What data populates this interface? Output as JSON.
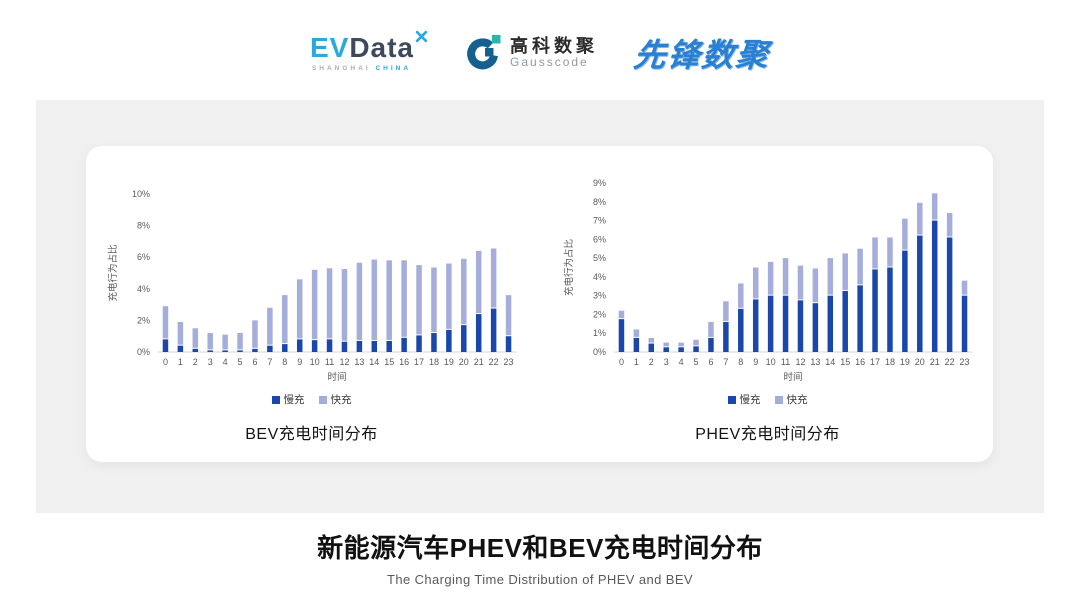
{
  "logos": {
    "evdata": {
      "ev": "EV",
      "data": "Data",
      "sub1": "SHANGHAI",
      "sub2": "CHINA"
    },
    "gausscode": {
      "cn": "高科数聚",
      "en": "Gausscode"
    },
    "xianfeng": {
      "text": "先锋数聚"
    }
  },
  "chart_data": [
    {
      "type": "bar",
      "stacked": true,
      "title": "BEV充电时间分布",
      "xlabel": "时间",
      "ylabel": "充电行为占比",
      "ylim": [
        0,
        10
      ],
      "ytick_step": 2,
      "grid": false,
      "legend_position": "bottom",
      "categories": [
        "0",
        "1",
        "2",
        "3",
        "4",
        "5",
        "6",
        "7",
        "8",
        "9",
        "10",
        "11",
        "12",
        "13",
        "14",
        "15",
        "16",
        "17",
        "18",
        "19",
        "20",
        "21",
        "22",
        "23"
      ],
      "series": [
        {
          "name": "慢充",
          "color": "#1b47ab",
          "values": [
            0.8,
            0.4,
            0.2,
            0.1,
            0.1,
            0.1,
            0.2,
            0.4,
            0.5,
            0.8,
            0.75,
            0.8,
            0.65,
            0.7,
            0.7,
            0.7,
            0.9,
            1.05,
            1.2,
            1.4,
            1.7,
            2.4,
            2.75,
            1.0
          ]
        },
        {
          "name": "快充",
          "color": "#a5addb",
          "values": [
            2.1,
            1.5,
            1.3,
            1.1,
            1.0,
            1.1,
            1.8,
            2.4,
            3.1,
            3.8,
            4.45,
            4.5,
            4.6,
            4.95,
            5.15,
            5.1,
            4.9,
            4.45,
            4.15,
            4.2,
            4.2,
            4.0,
            3.8,
            2.6
          ]
        }
      ]
    },
    {
      "type": "bar",
      "stacked": true,
      "title": "PHEV充电时间分布",
      "xlabel": "时间",
      "ylabel": "充电行为占比",
      "ylim": [
        0,
        9
      ],
      "ytick_step": 1,
      "grid": false,
      "legend_position": "bottom",
      "categories": [
        "0",
        "1",
        "2",
        "3",
        "4",
        "5",
        "6",
        "7",
        "8",
        "9",
        "10",
        "11",
        "12",
        "13",
        "14",
        "15",
        "16",
        "17",
        "18",
        "19",
        "20",
        "21",
        "22",
        "23"
      ],
      "series": [
        {
          "name": "慢充",
          "color": "#1b47ab",
          "values": [
            1.75,
            0.75,
            0.45,
            0.25,
            0.25,
            0.3,
            0.75,
            1.6,
            2.3,
            2.8,
            3.0,
            3.0,
            2.75,
            2.6,
            3.0,
            3.25,
            3.55,
            4.4,
            4.5,
            5.4,
            6.2,
            7.0,
            6.1,
            3.0
          ]
        },
        {
          "name": "快充",
          "color": "#a5addb",
          "values": [
            0.45,
            0.45,
            0.3,
            0.25,
            0.25,
            0.35,
            0.85,
            1.1,
            1.35,
            1.7,
            1.8,
            2.0,
            1.85,
            1.85,
            2.0,
            2.0,
            1.95,
            1.7,
            1.6,
            1.7,
            1.75,
            1.45,
            1.3,
            0.8
          ]
        }
      ]
    }
  ],
  "footer": {
    "title": "新能源汽车PHEV和BEV充电时间分布",
    "subtitle": "The Charging Time Distribution of PHEV and BEV"
  },
  "colors": {
    "slow_charge": "#1b47ab",
    "fast_charge": "#a5addb",
    "band_background": "#f0f0f1",
    "evdata_blue": "#29a9e0",
    "evdata_dark": "#3d4a5c",
    "gauss_blue": "#15608f",
    "gauss_teal": "#2bb6ad",
    "xianfeng_blue": "#2b7fd1"
  }
}
